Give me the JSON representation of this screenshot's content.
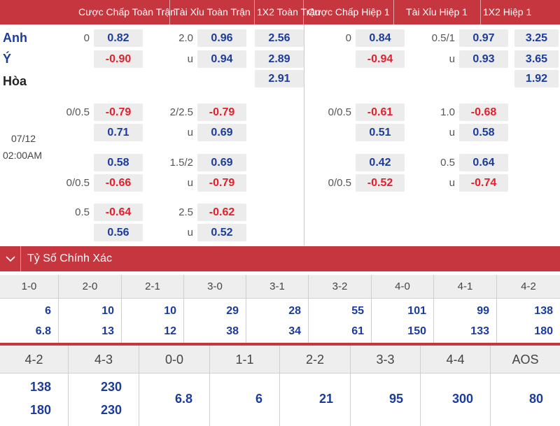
{
  "header": {
    "col1": "Cược Chấp Toàn Trận",
    "col2": "Tài Xỉu Toàn Trận",
    "col3": "1X2 Toàn Trận",
    "col4": "Cược Chấp Hiệp 1",
    "col5": "Tài Xỉu Hiệp 1",
    "col6": "1X2 Hiệp 1"
  },
  "teams": {
    "home": "Anh",
    "away": "Ý",
    "draw": "Hòa"
  },
  "match": {
    "date": "07/12",
    "time": "02:00AM"
  },
  "main": {
    "ah_line": "0",
    "ah_home": "0.82",
    "ah_away": "-0.90",
    "ou_line": "2.0",
    "ou_over": "0.96",
    "ou_under_label": "u",
    "ou_under": "0.94",
    "x12_home": "2.56",
    "x12_away": "2.89",
    "x12_draw": "2.91",
    "h1_ah_line": "0",
    "h1_ah_home": "0.84",
    "h1_ah_away": "-0.94",
    "h1_ou_line": "0.5/1",
    "h1_ou_over": "0.97",
    "h1_ou_under_label": "u",
    "h1_ou_under": "0.93",
    "h1_x12_home": "3.25",
    "h1_x12_away": "3.65",
    "h1_x12_draw": "1.92"
  },
  "alt1": {
    "ah_line": "0/0.5",
    "ah_home": "-0.79",
    "ah_away": "0.71",
    "ou_line": "2/2.5",
    "ou_over": "-0.79",
    "ou_under_label": "u",
    "ou_under": "0.69",
    "h1_ah_line": "0/0.5",
    "h1_ah_home": "-0.61",
    "h1_ah_away": "0.51",
    "h1_ou_line": "1.0",
    "h1_ou_over": "-0.68",
    "h1_ou_under_label": "u",
    "h1_ou_under": "0.58"
  },
  "alt2": {
    "ah_home": "0.58",
    "ah_line": "0/0.5",
    "ah_away": "-0.66",
    "ou_line": "1.5/2",
    "ou_over": "0.69",
    "ou_under_label": "u",
    "ou_under": "-0.79",
    "h1_ah_home": "0.42",
    "h1_ah_line": "0/0.5",
    "h1_ah_away": "-0.52",
    "h1_ou_line": "0.5",
    "h1_ou_over": "0.64",
    "h1_ou_under_label": "u",
    "h1_ou_under": "-0.74"
  },
  "alt3": {
    "ah_line": "0.5",
    "ah_home": "-0.64",
    "ah_away": "0.56",
    "ou_line": "2.5",
    "ou_over": "-0.62",
    "ou_under_label": "u",
    "ou_under": "0.52"
  },
  "correct_score": {
    "title": "Tỷ Số Chính Xác",
    "row1": [
      {
        "score": "1-0",
        "home": "6",
        "away": "6.8"
      },
      {
        "score": "2-0",
        "home": "10",
        "away": "13"
      },
      {
        "score": "2-1",
        "home": "10",
        "away": "12"
      },
      {
        "score": "3-0",
        "home": "29",
        "away": "38"
      },
      {
        "score": "3-1",
        "home": "28",
        "away": "34"
      },
      {
        "score": "3-2",
        "home": "55",
        "away": "61"
      },
      {
        "score": "4-0",
        "home": "101",
        "away": "150"
      },
      {
        "score": "4-1",
        "home": "99",
        "away": "133"
      },
      {
        "score": "4-2",
        "home": "138",
        "away": "180"
      }
    ],
    "row2": [
      {
        "score": "4-2",
        "home": "138",
        "away": "180"
      },
      {
        "score": "4-3",
        "home": "230",
        "away": "230"
      },
      {
        "score": "0-0",
        "single": "6.8"
      },
      {
        "score": "1-1",
        "single": "6"
      },
      {
        "score": "2-2",
        "single": "21"
      },
      {
        "score": "3-3",
        "single": "95"
      },
      {
        "score": "4-4",
        "single": "300"
      },
      {
        "score": "AOS",
        "single": "80"
      }
    ]
  },
  "colors": {
    "accent": "#c6363f",
    "positive": "#1c3c9a",
    "negative": "#e0212d",
    "box": "#ececec"
  }
}
